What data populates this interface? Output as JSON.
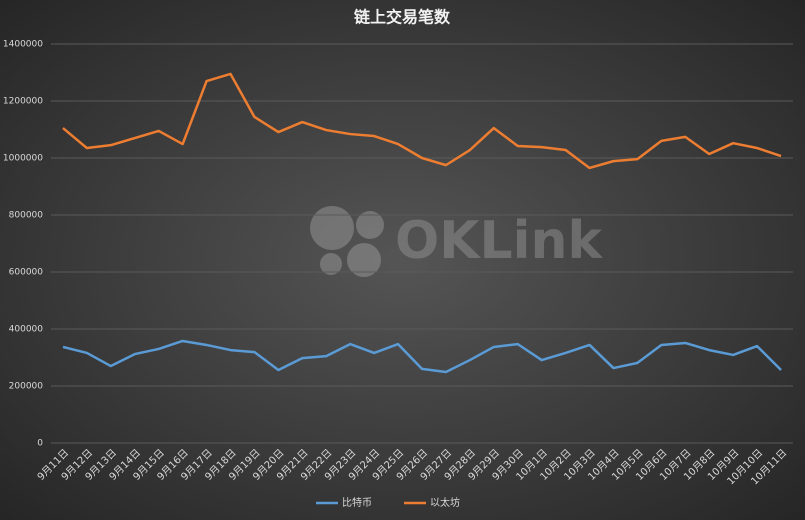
{
  "chart_data": {
    "type": "line",
    "title": "链上交易笔数",
    "watermark": "OKLink",
    "categories": [
      "9月11日",
      "9月12日",
      "9月13日",
      "9月14日",
      "9月15日",
      "9月16日",
      "9月17日",
      "9月18日",
      "9月19日",
      "9月20日",
      "9月21日",
      "9月22日",
      "9月23日",
      "9月24日",
      "9月25日",
      "9月26日",
      "9月27日",
      "9月28日",
      "9月29日",
      "9月30日",
      "10月1日",
      "10月2日",
      "10月3日",
      "10月4日",
      "10月5日",
      "10月6日",
      "10月7日",
      "10月8日",
      "10月9日",
      "10月10日",
      "10月11日"
    ],
    "series": [
      {
        "name": "比特币",
        "color": "#5b9bd5",
        "values": [
          337000,
          316000,
          270000,
          312000,
          330000,
          358000,
          344000,
          326000,
          319000,
          256000,
          298000,
          305000,
          347000,
          316000,
          347000,
          260000,
          249000,
          291000,
          337000,
          347000,
          291000,
          316000,
          344000,
          263000,
          281000,
          344000,
          351000,
          326000,
          309000,
          340000,
          256000
        ]
      },
      {
        "name": "以太坊",
        "color": "#ed7d31",
        "values": [
          1105000,
          1035000,
          1045000,
          1070000,
          1095000,
          1049000,
          1270000,
          1295000,
          1144000,
          1091000,
          1126000,
          1098000,
          1084000,
          1077000,
          1049000,
          1000000,
          975000,
          1028000,
          1105000,
          1042000,
          1038000,
          1028000,
          965000,
          989000,
          996000,
          1060000,
          1074000,
          1014000,
          1052000,
          1035000,
          1007000
        ]
      }
    ],
    "ylim": [
      0,
      1400000
    ],
    "yticks": [
      0,
      200000,
      400000,
      600000,
      800000,
      1000000,
      1200000,
      1400000
    ],
    "grid": true,
    "legend": "bottom"
  }
}
